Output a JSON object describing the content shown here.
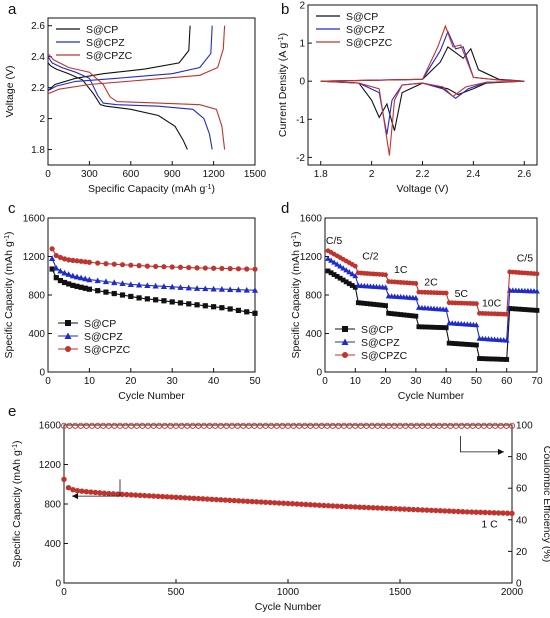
{
  "colors": {
    "s_cp": "#111111",
    "s_cpz": "#1f2ccc",
    "s_cpzc": "#c0342d"
  },
  "chart_data": [
    {
      "panel": "a",
      "type": "line",
      "xlabel": "Specific Capacity (mAh g",
      "xlabel_sup": "-1",
      "xlabel_end": ")",
      "ylabel": "Voltage (V)",
      "xlim": [
        0,
        1500
      ],
      "ylim": [
        1.7,
        2.65
      ],
      "xticks": [
        0,
        300,
        600,
        900,
        1200,
        1500
      ],
      "yticks": [
        1.8,
        2.0,
        2.2,
        2.4,
        2.6
      ],
      "legend": {
        "position": "top-left",
        "entries": [
          "S@CP",
          "S@CPZ",
          "S@CPZC"
        ]
      },
      "series": [
        {
          "name": "S@CP",
          "color_key": "s_cp",
          "discharge": [
            [
              0,
              2.36
            ],
            [
              20,
              2.34
            ],
            [
              60,
              2.32
            ],
            [
              150,
              2.29
            ],
            [
              250,
              2.25
            ],
            [
              330,
              2.16
            ],
            [
              380,
              2.09
            ],
            [
              420,
              2.08
            ],
            [
              600,
              2.06
            ],
            [
              800,
              2.02
            ],
            [
              920,
              1.95
            ],
            [
              980,
              1.86
            ],
            [
              1010,
              1.8
            ]
          ],
          "charge": [
            [
              0,
              2.18
            ],
            [
              50,
              2.22
            ],
            [
              200,
              2.26
            ],
            [
              400,
              2.29
            ],
            [
              700,
              2.32
            ],
            [
              950,
              2.36
            ],
            [
              1020,
              2.44
            ],
            [
              1030,
              2.6
            ]
          ]
        },
        {
          "name": "S@CPZ",
          "color_key": "s_cpz",
          "discharge": [
            [
              0,
              2.4
            ],
            [
              30,
              2.36
            ],
            [
              100,
              2.33
            ],
            [
              200,
              2.3
            ],
            [
              300,
              2.26
            ],
            [
              360,
              2.15
            ],
            [
              400,
              2.1
            ],
            [
              500,
              2.09
            ],
            [
              800,
              2.08
            ],
            [
              1050,
              2.06
            ],
            [
              1130,
              2.0
            ],
            [
              1170,
              1.9
            ],
            [
              1190,
              1.8
            ]
          ],
          "charge": [
            [
              0,
              2.18
            ],
            [
              60,
              2.21
            ],
            [
              200,
              2.24
            ],
            [
              500,
              2.26
            ],
            [
              900,
              2.29
            ],
            [
              1100,
              2.33
            ],
            [
              1180,
              2.42
            ],
            [
              1190,
              2.6
            ]
          ]
        },
        {
          "name": "S@CPZC",
          "color_key": "s_cpzc",
          "discharge": [
            [
              0,
              2.42
            ],
            [
              40,
              2.38
            ],
            [
              150,
              2.33
            ],
            [
              300,
              2.3
            ],
            [
              400,
              2.22
            ],
            [
              450,
              2.14
            ],
            [
              500,
              2.11
            ],
            [
              800,
              2.1
            ],
            [
              1100,
              2.09
            ],
            [
              1220,
              2.06
            ],
            [
              1260,
              1.95
            ],
            [
              1280,
              1.8
            ]
          ],
          "charge": [
            [
              0,
              2.16
            ],
            [
              80,
              2.19
            ],
            [
              300,
              2.22
            ],
            [
              700,
              2.25
            ],
            [
              1100,
              2.28
            ],
            [
              1230,
              2.33
            ],
            [
              1270,
              2.45
            ],
            [
              1280,
              2.6
            ]
          ]
        }
      ]
    },
    {
      "panel": "b",
      "type": "line",
      "xlabel": "Voltage (V)",
      "ylabel": "Current Density (A g",
      "ylabel_sup": "-1",
      "ylabel_end": ")",
      "xlim": [
        1.75,
        2.65
      ],
      "ylim": [
        -2.2,
        2.0
      ],
      "xticks": [
        1.8,
        2.0,
        2.2,
        2.4,
        2.6
      ],
      "yticks": [
        -2,
        -1,
        0,
        1,
        2
      ],
      "legend": {
        "position": "top-left",
        "entries": [
          "S@CP",
          "S@CPZ",
          "S@CPZC"
        ]
      },
      "series": [
        {
          "name": "S@CP",
          "color_key": "s_cp",
          "points": [
            [
              1.8,
              0
            ],
            [
              1.95,
              -0.05
            ],
            [
              2.0,
              -0.5
            ],
            [
              2.03,
              -0.95
            ],
            [
              2.06,
              -0.6
            ],
            [
              2.09,
              -1.3
            ],
            [
              2.12,
              -0.3
            ],
            [
              2.2,
              -0.05
            ],
            [
              2.3,
              -0.2
            ],
            [
              2.34,
              -0.35
            ],
            [
              2.4,
              -0.2
            ],
            [
              2.45,
              -0.05
            ],
            [
              2.6,
              0
            ],
            [
              2.5,
              0.05
            ],
            [
              2.42,
              0.3
            ],
            [
              2.39,
              0.85
            ],
            [
              2.36,
              0.6
            ],
            [
              2.33,
              0.75
            ],
            [
              2.3,
              0.9
            ],
            [
              2.27,
              0.5
            ],
            [
              2.2,
              0.05
            ],
            [
              1.8,
              0
            ]
          ]
        },
        {
          "name": "S@CPZ",
          "color_key": "s_cpz",
          "points": [
            [
              1.8,
              0
            ],
            [
              1.95,
              -0.05
            ],
            [
              2.03,
              -0.3
            ],
            [
              2.06,
              -1.4
            ],
            [
              2.08,
              -0.5
            ],
            [
              2.12,
              -0.1
            ],
            [
              2.2,
              -0.05
            ],
            [
              2.28,
              -0.2
            ],
            [
              2.33,
              -0.45
            ],
            [
              2.38,
              -0.2
            ],
            [
              2.45,
              -0.03
            ],
            [
              2.6,
              0
            ],
            [
              2.5,
              0.03
            ],
            [
              2.4,
              0.1
            ],
            [
              2.36,
              0.9
            ],
            [
              2.33,
              0.85
            ],
            [
              2.3,
              1.3
            ],
            [
              2.27,
              0.8
            ],
            [
              2.2,
              0.05
            ],
            [
              1.8,
              0
            ]
          ]
        },
        {
          "name": "S@CPZC",
          "color_key": "s_cpzc",
          "points": [
            [
              1.8,
              0
            ],
            [
              1.95,
              -0.05
            ],
            [
              2.03,
              -0.2
            ],
            [
              2.07,
              -1.95
            ],
            [
              2.09,
              -0.5
            ],
            [
              2.12,
              -0.1
            ],
            [
              2.2,
              -0.05
            ],
            [
              2.28,
              -0.15
            ],
            [
              2.32,
              -0.4
            ],
            [
              2.37,
              -0.15
            ],
            [
              2.45,
              -0.03
            ],
            [
              2.6,
              0
            ],
            [
              2.5,
              0.03
            ],
            [
              2.4,
              0.1
            ],
            [
              2.35,
              0.95
            ],
            [
              2.32,
              0.9
            ],
            [
              2.29,
              1.45
            ],
            [
              2.26,
              0.9
            ],
            [
              2.2,
              0.05
            ],
            [
              1.8,
              0
            ]
          ]
        }
      ]
    },
    {
      "panel": "c",
      "type": "scatter",
      "xlabel": "Cycle Number",
      "ylabel": "Specific Capacity (mAh g",
      "ylabel_sup": "-1",
      "ylabel_end": ")",
      "xlim": [
        0,
        50
      ],
      "ylim": [
        0,
        1600
      ],
      "xticks": [
        0,
        10,
        20,
        30,
        40,
        50
      ],
      "yticks": [
        0,
        400,
        800,
        1200,
        1600
      ],
      "legend": {
        "position": "bottom-left",
        "entries": [
          "S@CP",
          "S@CPZ",
          "S@CPZC"
        ]
      },
      "series": [
        {
          "name": "S@CP",
          "marker": "square",
          "color_key": "s_cp",
          "x": [
            1,
            2,
            3,
            4,
            5,
            6,
            7,
            8,
            9,
            10,
            12,
            14,
            16,
            18,
            20,
            22,
            24,
            26,
            28,
            30,
            32,
            34,
            36,
            38,
            40,
            42,
            44,
            46,
            48,
            50
          ],
          "values": [
            1070,
            980,
            950,
            930,
            915,
            900,
            890,
            880,
            870,
            860,
            845,
            830,
            815,
            800,
            785,
            770,
            760,
            750,
            740,
            728,
            718,
            708,
            698,
            688,
            678,
            668,
            655,
            640,
            625,
            610
          ]
        },
        {
          "name": "S@CPZ",
          "marker": "triangle",
          "color_key": "s_cpz",
          "x": [
            1,
            2,
            3,
            4,
            5,
            6,
            7,
            8,
            9,
            10,
            12,
            14,
            16,
            18,
            20,
            22,
            24,
            26,
            28,
            30,
            32,
            34,
            36,
            38,
            40,
            42,
            44,
            46,
            48,
            50
          ],
          "values": [
            1180,
            1080,
            1050,
            1030,
            1015,
            1000,
            990,
            980,
            970,
            960,
            950,
            940,
            930,
            920,
            910,
            905,
            900,
            895,
            890,
            885,
            880,
            875,
            870,
            867,
            864,
            861,
            858,
            855,
            852,
            850
          ]
        },
        {
          "name": "S@CPZC",
          "marker": "circle",
          "color_key": "s_cpzc",
          "x": [
            1,
            2,
            3,
            4,
            5,
            6,
            7,
            8,
            9,
            10,
            12,
            14,
            16,
            18,
            20,
            22,
            24,
            26,
            28,
            30,
            32,
            34,
            36,
            38,
            40,
            42,
            44,
            46,
            48,
            50
          ],
          "values": [
            1280,
            1210,
            1190,
            1175,
            1165,
            1160,
            1155,
            1150,
            1145,
            1140,
            1132,
            1125,
            1120,
            1115,
            1110,
            1105,
            1100,
            1097,
            1094,
            1091,
            1088,
            1085,
            1082,
            1080,
            1078,
            1076,
            1074,
            1072,
            1070,
            1068
          ]
        }
      ]
    },
    {
      "panel": "d",
      "type": "scatter",
      "xlabel": "Cycle Number",
      "ylabel": "Specific Capacity (mAh g",
      "ylabel_sup": "-1",
      "ylabel_end": ")",
      "xlim": [
        0,
        70
      ],
      "ylim": [
        0,
        1600
      ],
      "xticks": [
        0,
        10,
        20,
        30,
        40,
        50,
        60,
        70
      ],
      "yticks": [
        0,
        400,
        800,
        1200,
        1600
      ],
      "legend": {
        "position": "bottom-left",
        "entries": [
          "S@CP",
          "S@CPZ",
          "S@CPZC"
        ]
      },
      "rate_labels": [
        "C/5",
        "C/2",
        "1C",
        "2C",
        "5C",
        "10C",
        "C/5"
      ],
      "rate_label_cycles": [
        3,
        15,
        25,
        35,
        45,
        55,
        66
      ],
      "rate_label_values": [
        1330,
        1170,
        1030,
        900,
        780,
        680,
        1150
      ],
      "steps": [
        [
          1,
          10
        ],
        [
          11,
          20
        ],
        [
          21,
          30
        ],
        [
          31,
          40
        ],
        [
          41,
          50
        ],
        [
          51,
          60
        ],
        [
          61,
          70
        ]
      ],
      "series": [
        {
          "name": "S@CP",
          "marker": "square",
          "color_key": "s_cp",
          "step_values": [
            [
              1050,
              880
            ],
            [
              720,
              690
            ],
            [
              610,
              580
            ],
            [
              470,
              460
            ],
            [
              300,
              280
            ],
            [
              140,
              130
            ],
            [
              660,
              640
            ]
          ]
        },
        {
          "name": "S@CPZ",
          "marker": "triangle",
          "color_key": "s_cpz",
          "step_values": [
            [
              1180,
              1000
            ],
            [
              900,
              880
            ],
            [
              790,
              770
            ],
            [
              670,
              650
            ],
            [
              510,
              490
            ],
            [
              350,
              330
            ],
            [
              850,
              840
            ]
          ]
        },
        {
          "name": "S@CPZC",
          "marker": "circle",
          "color_key": "s_cpzc",
          "step_values": [
            [
              1260,
              1100
            ],
            [
              1030,
              1010
            ],
            [
              940,
              920
            ],
            [
              830,
              820
            ],
            [
              720,
              710
            ],
            [
              610,
              600
            ],
            [
              1040,
              1020
            ]
          ]
        }
      ]
    },
    {
      "panel": "e",
      "type": "scatter",
      "xlabel": "Cycle Number",
      "ylabel": "Specific Capacity (mAh g",
      "ylabel_sup": "-1",
      "ylabel_end": ")",
      "y2label": "Coulombic Efficiency (%)",
      "xlim": [
        0,
        2000
      ],
      "ylim": [
        0,
        1600
      ],
      "y2lim": [
        0,
        100
      ],
      "xticks": [
        0,
        500,
        1000,
        1500,
        2000
      ],
      "yticks": [
        0,
        400,
        800,
        1200,
        1600
      ],
      "y2ticks": [
        0,
        20,
        40,
        60,
        80,
        100
      ],
      "annotation": "1 C",
      "series": [
        {
          "role": "capacity",
          "axis": "left",
          "marker": "filled-circle",
          "color_key": "s_cpzc",
          "x": [
            0,
            10,
            30,
            60,
            100,
            200,
            400,
            600,
            800,
            1000,
            1200,
            1400,
            1600,
            1800,
            2000
          ],
          "values": [
            1050,
            980,
            950,
            935,
            925,
            905,
            880,
            855,
            830,
            805,
            780,
            760,
            740,
            720,
            705
          ]
        },
        {
          "role": "coulombic_efficiency",
          "axis": "right",
          "marker": "open-circle",
          "color_key": "s_cpzc",
          "x": [
            0,
            2000
          ],
          "values": [
            99.5,
            99.5
          ]
        }
      ]
    }
  ]
}
